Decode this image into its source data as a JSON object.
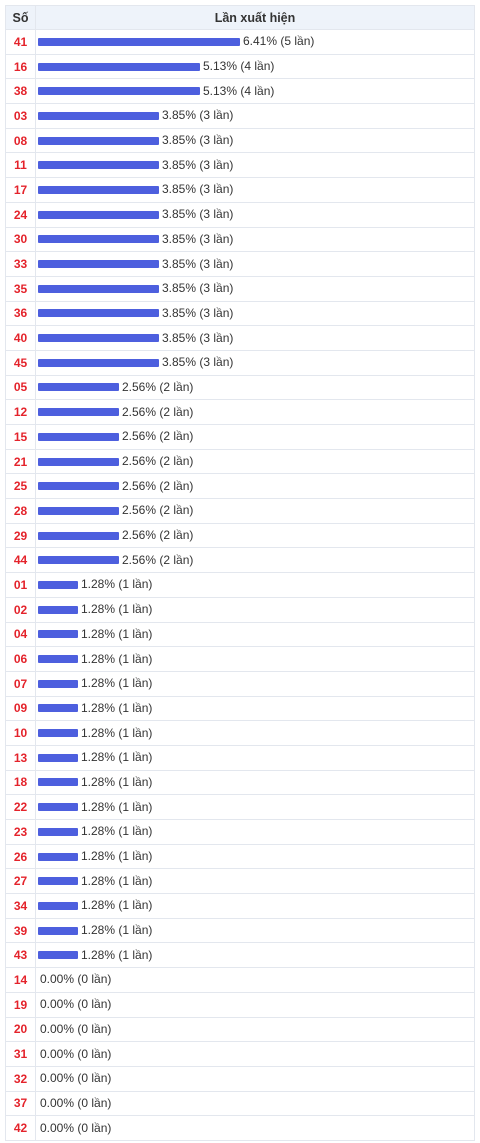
{
  "header": {
    "so": "Số",
    "lan_xuat_hien": "Lần xuất hiện"
  },
  "colors": {
    "bar": "#4d5fde",
    "number": "#e4232b",
    "header_bg": "#eef3fa"
  },
  "chart_data": {
    "type": "bar",
    "orientation": "horizontal",
    "xlabel": "Lần xuất hiện",
    "ylabel": "Số",
    "rows": [
      {
        "number": "41",
        "percent": 6.41,
        "count": 5,
        "label": "6.41% (5 lần)"
      },
      {
        "number": "16",
        "percent": 5.13,
        "count": 4,
        "label": "5.13% (4 lần)"
      },
      {
        "number": "38",
        "percent": 5.13,
        "count": 4,
        "label": "5.13% (4 lần)"
      },
      {
        "number": "03",
        "percent": 3.85,
        "count": 3,
        "label": "3.85% (3 lần)"
      },
      {
        "number": "08",
        "percent": 3.85,
        "count": 3,
        "label": "3.85% (3 lần)"
      },
      {
        "number": "11",
        "percent": 3.85,
        "count": 3,
        "label": "3.85% (3 lần)"
      },
      {
        "number": "17",
        "percent": 3.85,
        "count": 3,
        "label": "3.85% (3 lần)"
      },
      {
        "number": "24",
        "percent": 3.85,
        "count": 3,
        "label": "3.85% (3 lần)"
      },
      {
        "number": "30",
        "percent": 3.85,
        "count": 3,
        "label": "3.85% (3 lần)"
      },
      {
        "number": "33",
        "percent": 3.85,
        "count": 3,
        "label": "3.85% (3 lần)"
      },
      {
        "number": "35",
        "percent": 3.85,
        "count": 3,
        "label": "3.85% (3 lần)"
      },
      {
        "number": "36",
        "percent": 3.85,
        "count": 3,
        "label": "3.85% (3 lần)"
      },
      {
        "number": "40",
        "percent": 3.85,
        "count": 3,
        "label": "3.85% (3 lần)"
      },
      {
        "number": "45",
        "percent": 3.85,
        "count": 3,
        "label": "3.85% (3 lần)"
      },
      {
        "number": "05",
        "percent": 2.56,
        "count": 2,
        "label": "2.56% (2 lần)"
      },
      {
        "number": "12",
        "percent": 2.56,
        "count": 2,
        "label": "2.56% (2 lần)"
      },
      {
        "number": "15",
        "percent": 2.56,
        "count": 2,
        "label": "2.56% (2 lần)"
      },
      {
        "number": "21",
        "percent": 2.56,
        "count": 2,
        "label": "2.56% (2 lần)"
      },
      {
        "number": "25",
        "percent": 2.56,
        "count": 2,
        "label": "2.56% (2 lần)"
      },
      {
        "number": "28",
        "percent": 2.56,
        "count": 2,
        "label": "2.56% (2 lần)"
      },
      {
        "number": "29",
        "percent": 2.56,
        "count": 2,
        "label": "2.56% (2 lần)"
      },
      {
        "number": "44",
        "percent": 2.56,
        "count": 2,
        "label": "2.56% (2 lần)"
      },
      {
        "number": "01",
        "percent": 1.28,
        "count": 1,
        "label": "1.28% (1 lần)"
      },
      {
        "number": "02",
        "percent": 1.28,
        "count": 1,
        "label": "1.28% (1 lần)"
      },
      {
        "number": "04",
        "percent": 1.28,
        "count": 1,
        "label": "1.28% (1 lần)"
      },
      {
        "number": "06",
        "percent": 1.28,
        "count": 1,
        "label": "1.28% (1 lần)"
      },
      {
        "number": "07",
        "percent": 1.28,
        "count": 1,
        "label": "1.28% (1 lần)"
      },
      {
        "number": "09",
        "percent": 1.28,
        "count": 1,
        "label": "1.28% (1 lần)"
      },
      {
        "number": "10",
        "percent": 1.28,
        "count": 1,
        "label": "1.28% (1 lần)"
      },
      {
        "number": "13",
        "percent": 1.28,
        "count": 1,
        "label": "1.28% (1 lần)"
      },
      {
        "number": "18",
        "percent": 1.28,
        "count": 1,
        "label": "1.28% (1 lần)"
      },
      {
        "number": "22",
        "percent": 1.28,
        "count": 1,
        "label": "1.28% (1 lần)"
      },
      {
        "number": "23",
        "percent": 1.28,
        "count": 1,
        "label": "1.28% (1 lần)"
      },
      {
        "number": "26",
        "percent": 1.28,
        "count": 1,
        "label": "1.28% (1 lần)"
      },
      {
        "number": "27",
        "percent": 1.28,
        "count": 1,
        "label": "1.28% (1 lần)"
      },
      {
        "number": "34",
        "percent": 1.28,
        "count": 1,
        "label": "1.28% (1 lần)"
      },
      {
        "number": "39",
        "percent": 1.28,
        "count": 1,
        "label": "1.28% (1 lần)"
      },
      {
        "number": "43",
        "percent": 1.28,
        "count": 1,
        "label": "1.28% (1 lần)"
      },
      {
        "number": "14",
        "percent": 0.0,
        "count": 0,
        "label": "0.00% (0 lần)"
      },
      {
        "number": "19",
        "percent": 0.0,
        "count": 0,
        "label": "0.00% (0 lần)"
      },
      {
        "number": "20",
        "percent": 0.0,
        "count": 0,
        "label": "0.00% (0 lần)"
      },
      {
        "number": "31",
        "percent": 0.0,
        "count": 0,
        "label": "0.00% (0 lần)"
      },
      {
        "number": "32",
        "percent": 0.0,
        "count": 0,
        "label": "0.00% (0 lần)"
      },
      {
        "number": "37",
        "percent": 0.0,
        "count": 0,
        "label": "0.00% (0 lần)"
      },
      {
        "number": "42",
        "percent": 0.0,
        "count": 0,
        "label": "0.00% (0 lần)"
      }
    ]
  }
}
